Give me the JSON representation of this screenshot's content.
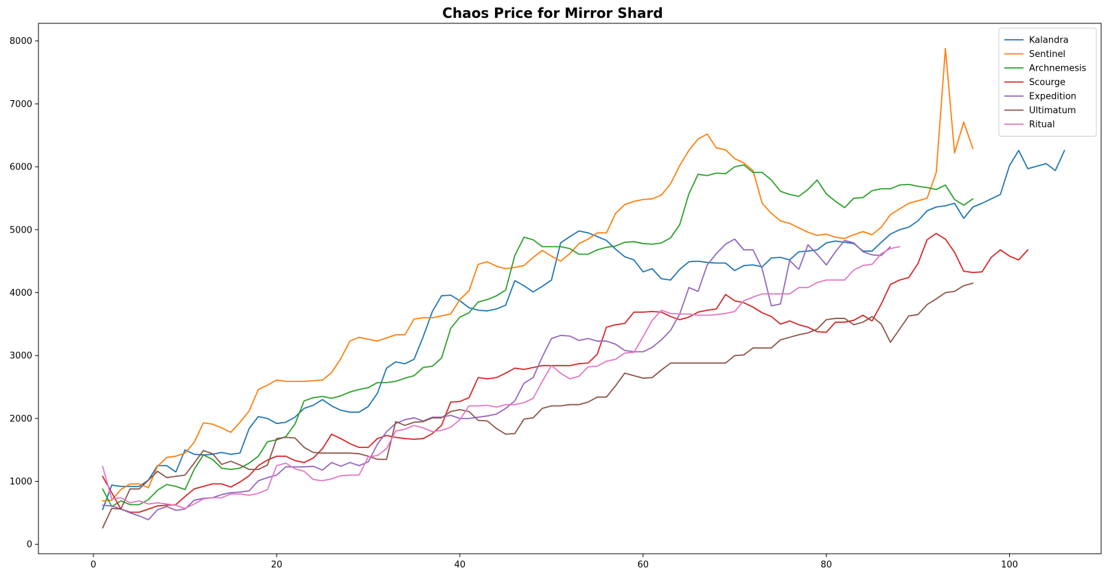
{
  "chart_data": {
    "type": "line",
    "title": "Chaos Price for Mirror Shard",
    "xlabel": "",
    "ylabel": "",
    "xlim": [
      -6,
      110
    ],
    "ylim": [
      -150,
      8280
    ],
    "xticks": [
      0,
      20,
      40,
      60,
      80,
      100
    ],
    "yticks": [
      0,
      1000,
      2000,
      3000,
      4000,
      5000,
      6000,
      7000,
      8000
    ],
    "grid": false,
    "legend_position": "top-right",
    "series": [
      {
        "name": "Kalandra",
        "color": "#1f77b4",
        "x_start": 1,
        "values": [
          550,
          940,
          920,
          920,
          920,
          1020,
          1250,
          1250,
          1150,
          1500,
          1430,
          1420,
          1430,
          1460,
          1430,
          1450,
          1840,
          2030,
          2000,
          1920,
          1940,
          2020,
          2160,
          2210,
          2300,
          2200,
          2130,
          2100,
          2100,
          2190,
          2400,
          2800,
          2900,
          2870,
          2940,
          3300,
          3700,
          3950,
          3960,
          3870,
          3760,
          3720,
          3710,
          3740,
          3800,
          4190,
          4110,
          4010,
          4100,
          4200,
          4790,
          4890,
          4980,
          4950,
          4890,
          4830,
          4690,
          4570,
          4520,
          4330,
          4380,
          4220,
          4200,
          4370,
          4490,
          4500,
          4480,
          4470,
          4470,
          4350,
          4430,
          4440,
          4410,
          4550,
          4560,
          4520,
          4650,
          4660,
          4680,
          4790,
          4820,
          4800,
          4780,
          4660,
          4660,
          4800,
          4930,
          5000,
          5040,
          5140,
          5300,
          5360,
          5380,
          5420,
          5180,
          5360,
          5420,
          5490,
          5560,
          6020,
          6260,
          5970,
          6010,
          6050,
          5940,
          6260
        ]
      },
      {
        "name": "Sentinel",
        "color": "#ff7f0e",
        "x_start": 1,
        "values": [
          690,
          700,
          870,
          960,
          960,
          900,
          1240,
          1380,
          1400,
          1450,
          1620,
          1930,
          1910,
          1850,
          1780,
          1940,
          2120,
          2460,
          2530,
          2610,
          2590,
          2590,
          2590,
          2600,
          2610,
          2730,
          2950,
          3230,
          3290,
          3260,
          3230,
          3280,
          3330,
          3330,
          3580,
          3600,
          3600,
          3630,
          3660,
          3890,
          4030,
          4450,
          4490,
          4420,
          4380,
          4400,
          4430,
          4560,
          4670,
          4580,
          4500,
          4620,
          4780,
          4850,
          4950,
          4950,
          5260,
          5400,
          5450,
          5480,
          5490,
          5550,
          5730,
          6020,
          6260,
          6440,
          6520,
          6300,
          6270,
          6130,
          6060,
          5940,
          5420,
          5260,
          5140,
          5100,
          5030,
          4960,
          4910,
          4930,
          4880,
          4860,
          4920,
          4970,
          4920,
          5040,
          5240,
          5330,
          5420,
          5460,
          5500,
          5910,
          7880,
          6220,
          6710,
          6290
        ]
      },
      {
        "name": "Archnemesis",
        "color": "#2ca02c",
        "x_start": 1,
        "values": [
          880,
          600,
          690,
          630,
          630,
          710,
          860,
          950,
          920,
          870,
          1190,
          1420,
          1350,
          1210,
          1190,
          1210,
          1290,
          1400,
          1630,
          1660,
          1710,
          1910,
          2280,
          2330,
          2350,
          2320,
          2360,
          2420,
          2460,
          2490,
          2570,
          2570,
          2590,
          2640,
          2680,
          2810,
          2830,
          2960,
          3430,
          3610,
          3680,
          3850,
          3890,
          3950,
          4040,
          4590,
          4880,
          4840,
          4730,
          4730,
          4730,
          4700,
          4610,
          4610,
          4680,
          4720,
          4740,
          4800,
          4810,
          4780,
          4770,
          4790,
          4870,
          5080,
          5570,
          5880,
          5860,
          5900,
          5890,
          6000,
          6030,
          5910,
          5910,
          5790,
          5610,
          5560,
          5530,
          5640,
          5790,
          5570,
          5450,
          5350,
          5500,
          5510,
          5620,
          5650,
          5650,
          5710,
          5720,
          5690,
          5670,
          5640,
          5710,
          5480,
          5390,
          5490
        ]
      },
      {
        "name": "Scourge",
        "color": "#d62728",
        "x_start": 1,
        "values": [
          1080,
          820,
          560,
          510,
          510,
          560,
          610,
          620,
          630,
          760,
          880,
          920,
          960,
          960,
          910,
          990,
          1090,
          1250,
          1340,
          1400,
          1400,
          1330,
          1300,
          1370,
          1520,
          1750,
          1680,
          1600,
          1540,
          1540,
          1680,
          1730,
          1700,
          1680,
          1670,
          1680,
          1760,
          1890,
          2260,
          2270,
          2330,
          2650,
          2630,
          2650,
          2720,
          2800,
          2780,
          2810,
          2840,
          2840,
          2840,
          2840,
          2870,
          2880,
          3020,
          3450,
          3490,
          3510,
          3690,
          3690,
          3700,
          3690,
          3620,
          3570,
          3610,
          3690,
          3720,
          3740,
          3970,
          3870,
          3840,
          3770,
          3680,
          3620,
          3500,
          3550,
          3490,
          3450,
          3380,
          3370,
          3530,
          3530,
          3560,
          3640,
          3550,
          3820,
          4130,
          4200,
          4240,
          4460,
          4840,
          4940,
          4850,
          4640,
          4340,
          4320,
          4330,
          4560,
          4680,
          4580,
          4520,
          4680
        ]
      },
      {
        "name": "Expedition",
        "color": "#9467bd",
        "x_start": 1,
        "values": [
          620,
          610,
          560,
          500,
          450,
          390,
          550,
          600,
          540,
          560,
          700,
          730,
          740,
          790,
          820,
          830,
          850,
          1010,
          1060,
          1100,
          1230,
          1230,
          1230,
          1240,
          1180,
          1300,
          1240,
          1300,
          1250,
          1310,
          1590,
          1790,
          1920,
          1980,
          2010,
          1960,
          2020,
          2020,
          2050,
          2000,
          2000,
          2020,
          2040,
          2070,
          2160,
          2280,
          2560,
          2650,
          2980,
          3270,
          3320,
          3310,
          3240,
          3270,
          3230,
          3230,
          3180,
          3080,
          3060,
          3060,
          3130,
          3250,
          3400,
          3660,
          4080,
          4020,
          4440,
          4620,
          4770,
          4850,
          4680,
          4680,
          4380,
          3790,
          3820,
          4510,
          4370,
          4760,
          4610,
          4440,
          4650,
          4830,
          4790,
          4650,
          4600,
          4590,
          4730
        ]
      },
      {
        "name": "Ultimatum",
        "color": "#8c564b",
        "x_start": 1,
        "values": [
          260,
          570,
          560,
          880,
          880,
          1020,
          1160,
          1060,
          1080,
          1100,
          1290,
          1490,
          1440,
          1270,
          1320,
          1260,
          1190,
          1190,
          1260,
          1680,
          1700,
          1690,
          1540,
          1460,
          1450,
          1450,
          1450,
          1450,
          1440,
          1400,
          1350,
          1350,
          1950,
          1890,
          1940,
          1950,
          2010,
          2010,
          2110,
          2140,
          2110,
          1970,
          1960,
          1840,
          1750,
          1760,
          1990,
          2010,
          2160,
          2200,
          2200,
          2220,
          2220,
          2260,
          2340,
          2340,
          2520,
          2720,
          2680,
          2640,
          2650,
          2770,
          2880,
          2880,
          2880,
          2880,
          2880,
          2880,
          2880,
          3000,
          3010,
          3120,
          3120,
          3120,
          3250,
          3290,
          3330,
          3360,
          3420,
          3570,
          3590,
          3590,
          3490,
          3530,
          3620,
          3500,
          3210,
          3420,
          3630,
          3650,
          3810,
          3900,
          4000,
          4020,
          4110,
          4150
        ]
      },
      {
        "name": "Ritual",
        "color": "#e377c2",
        "x_start": 1,
        "values": [
          1240,
          720,
          740,
          660,
          690,
          640,
          660,
          640,
          620,
          570,
          640,
          720,
          740,
          740,
          800,
          800,
          780,
          810,
          870,
          1250,
          1290,
          1200,
          1160,
          1030,
          1010,
          1040,
          1090,
          1100,
          1100,
          1390,
          1410,
          1520,
          1800,
          1830,
          1890,
          1850,
          1790,
          1810,
          1860,
          1980,
          2200,
          2200,
          2210,
          2180,
          2220,
          2220,
          2250,
          2320,
          2590,
          2840,
          2720,
          2630,
          2670,
          2820,
          2830,
          2910,
          2940,
          3040,
          3050,
          3300,
          3560,
          3720,
          3670,
          3660,
          3660,
          3640,
          3640,
          3650,
          3670,
          3700,
          3870,
          3930,
          3980,
          3980,
          3980,
          3980,
          4080,
          4080,
          4160,
          4200,
          4200,
          4200,
          4360,
          4430,
          4450,
          4620,
          4700,
          4730
        ]
      }
    ]
  }
}
